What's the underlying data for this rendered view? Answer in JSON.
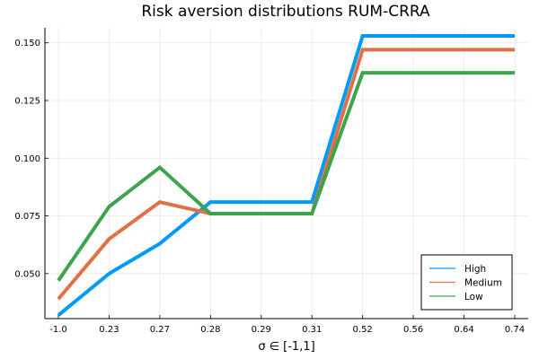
{
  "chart_data": {
    "type": "line",
    "title": "Risk aversion distributions RUM-CRRA",
    "xlabel": "σ ∈ [-1,1]",
    "ylabel": "",
    "categories": [
      "-1.0",
      "0.23",
      "0.27",
      "0.28",
      "0.29",
      "0.31",
      "0.52",
      "0.56",
      "0.64",
      "0.74"
    ],
    "ylim": [
      0.0305,
      0.1565
    ],
    "yticks": [
      0.05,
      0.075,
      0.1,
      0.125,
      0.15
    ],
    "ytick_labels": [
      "0.050",
      "0.075",
      "0.100",
      "0.125",
      "0.150"
    ],
    "grid": true,
    "legend_position": "bottom-right",
    "series": [
      {
        "name": "High",
        "color": "#009af9",
        "values": [
          0.032,
          0.05,
          0.063,
          0.081,
          0.081,
          0.081,
          0.153,
          0.153,
          0.153,
          0.153
        ]
      },
      {
        "name": "Medium",
        "color": "#e26f46",
        "values": [
          0.039,
          0.065,
          0.081,
          0.076,
          0.076,
          0.076,
          0.147,
          0.147,
          0.147,
          0.147
        ]
      },
      {
        "name": "Low",
        "color": "#3da44d",
        "values": [
          0.047,
          0.079,
          0.096,
          0.076,
          0.076,
          0.076,
          0.137,
          0.137,
          0.137,
          0.137
        ]
      }
    ]
  }
}
